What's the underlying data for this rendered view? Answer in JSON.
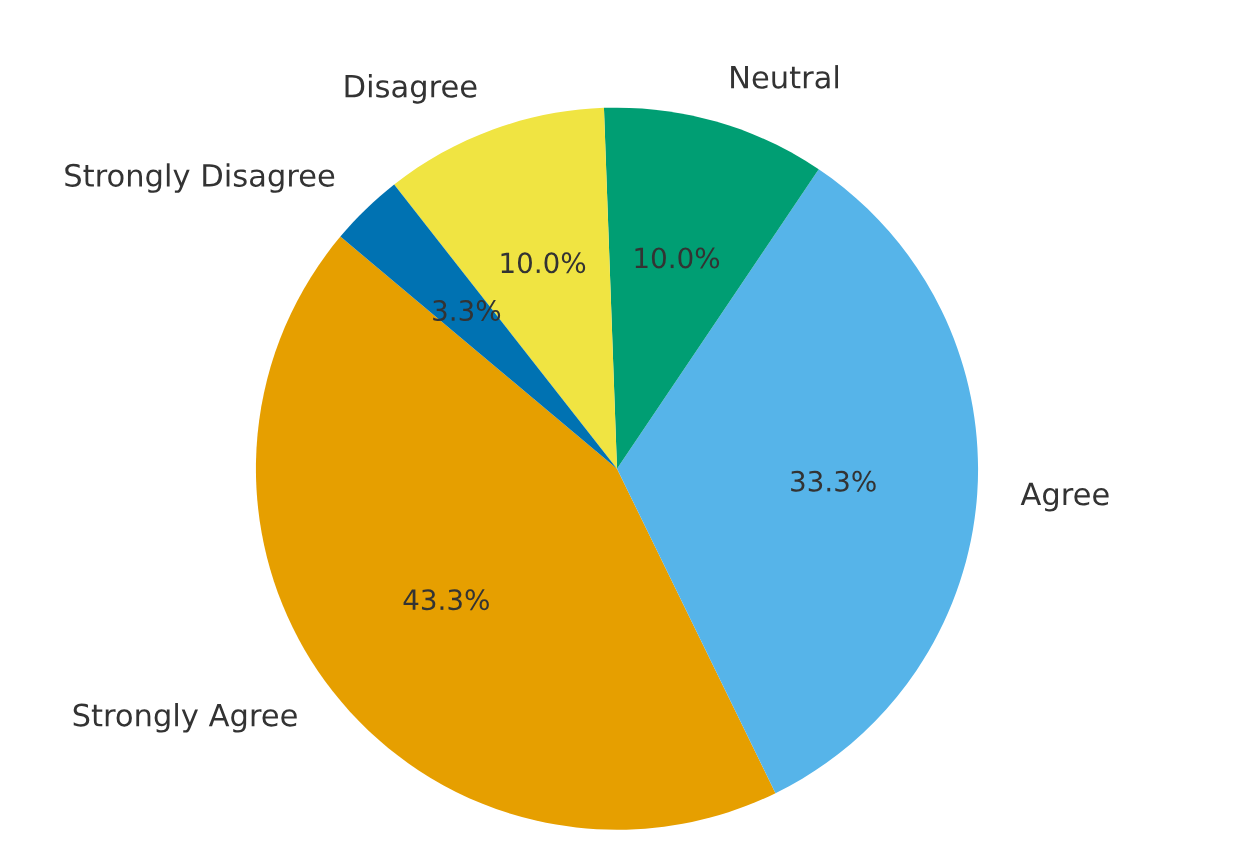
{
  "chart_data": {
    "type": "pie",
    "categories": [
      "Strongly Agree",
      "Agree",
      "Neutral",
      "Disagree",
      "Strongly Disagree"
    ],
    "values": [
      43.3,
      33.3,
      10.0,
      10.0,
      3.3
    ],
    "colors": [
      "#e69f00",
      "#56b4e9",
      "#009e73",
      "#f0e442",
      "#0072b2"
    ],
    "value_labels": [
      "43.3%",
      "33.3%",
      "10.0%",
      "10.0%",
      "3.3%"
    ]
  }
}
